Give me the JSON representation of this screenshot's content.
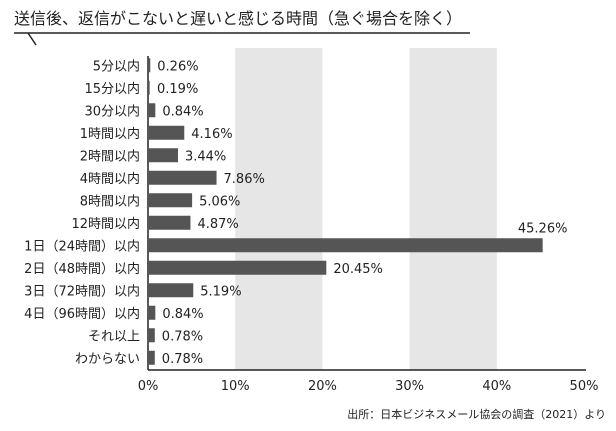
{
  "chart_data": {
    "type": "bar",
    "orientation": "horizontal",
    "title": "送信後、返信がこないと遅いと感じる時間（急ぐ場合を除く）",
    "categories": [
      "5分以内",
      "15分以内",
      "30分以内",
      "1時間以内",
      "2時間以内",
      "4時間以内",
      "8時間以内",
      "12時間以内",
      "1日（24時間）以内",
      "2日（48時間）以内",
      "3日（72時間）以内",
      "4日（96時間）以内",
      "それ以上",
      "わからない"
    ],
    "values": [
      0.26,
      0.19,
      0.84,
      4.16,
      3.44,
      7.86,
      5.06,
      4.87,
      45.26,
      20.45,
      5.19,
      0.84,
      0.78,
      0.78
    ],
    "value_labels": [
      "0.26%",
      "0.19%",
      "0.84%",
      "4.16%",
      "3.44%",
      "7.86%",
      "5.06%",
      "4.87%",
      "45.26%",
      "20.45%",
      "5.19%",
      "0.84%",
      "0.78%",
      "0.78%"
    ],
    "xlim": [
      0,
      50
    ],
    "xticks": [
      0,
      10,
      20,
      30,
      40,
      50
    ],
    "xtick_labels": [
      "0%",
      "10%",
      "20%",
      "30%",
      "40%",
      "50%"
    ],
    "bar_color": "#555555",
    "band_color": "#e6e6e6",
    "source": "出所：日本ビジネスメール協会の調査（2021）より"
  }
}
